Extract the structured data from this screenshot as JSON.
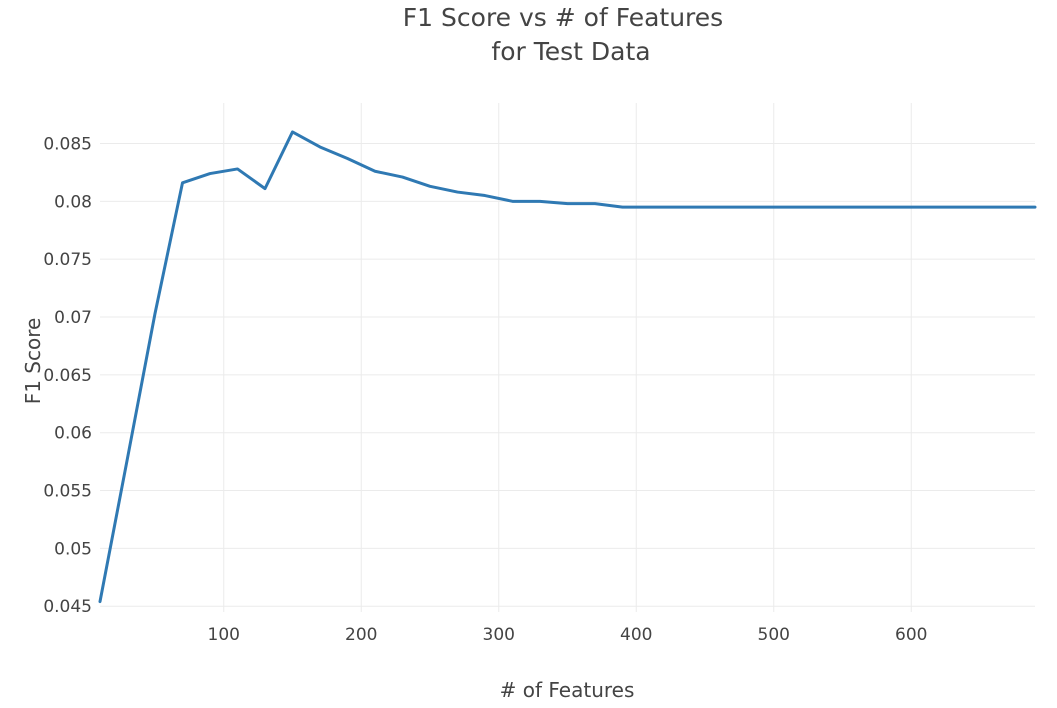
{
  "chart_data": {
    "type": "line",
    "title": "F1 Score vs # of Features",
    "subtitle": "for Test Data",
    "xlabel": "# of Features",
    "ylabel": "F1 Score",
    "xlim": [
      10,
      690
    ],
    "ylim": [
      0.0445,
      0.0885
    ],
    "x_ticks": [
      {
        "value": 100,
        "label": "100"
      },
      {
        "value": 200,
        "label": "200"
      },
      {
        "value": 300,
        "label": "300"
      },
      {
        "value": 400,
        "label": "400"
      },
      {
        "value": 500,
        "label": "500"
      },
      {
        "value": 600,
        "label": "600"
      }
    ],
    "y_ticks": [
      {
        "value": 0.045,
        "label": "0.045"
      },
      {
        "value": 0.05,
        "label": "0.05"
      },
      {
        "value": 0.055,
        "label": "0.055"
      },
      {
        "value": 0.06,
        "label": "0.06"
      },
      {
        "value": 0.065,
        "label": "0.065"
      },
      {
        "value": 0.07,
        "label": "0.07"
      },
      {
        "value": 0.075,
        "label": "0.075"
      },
      {
        "value": 0.08,
        "label": "0.08"
      },
      {
        "value": 0.085,
        "label": "0.085"
      }
    ],
    "grid": true,
    "series": [
      {
        "color": "#2f79b3",
        "x": [
          10,
          30,
          50,
          70,
          90,
          110,
          130,
          150,
          170,
          190,
          210,
          230,
          250,
          270,
          290,
          310,
          330,
          350,
          370,
          390,
          410,
          430,
          450,
          470,
          490,
          510,
          530,
          550,
          570,
          590,
          610,
          630,
          650,
          670,
          690
        ],
        "y": [
          0.0454,
          0.0578,
          0.0703,
          0.0816,
          0.0824,
          0.0828,
          0.0811,
          0.086,
          0.0847,
          0.0837,
          0.0826,
          0.0821,
          0.0813,
          0.0808,
          0.0805,
          0.08,
          0.08,
          0.0798,
          0.0798,
          0.0795,
          0.0795,
          0.0795,
          0.0795,
          0.0795,
          0.0795,
          0.0795,
          0.0795,
          0.0795,
          0.0795,
          0.0795,
          0.0795,
          0.0795,
          0.0795,
          0.0795,
          0.0795
        ]
      }
    ]
  }
}
